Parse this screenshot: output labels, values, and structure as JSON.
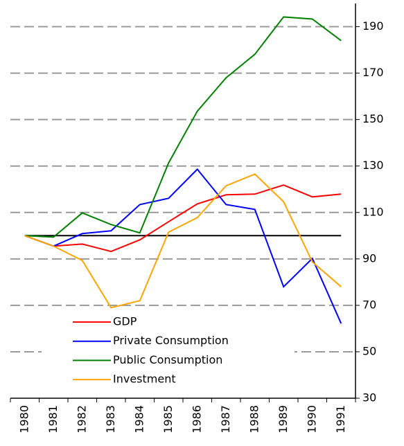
{
  "chart_data": {
    "type": "line",
    "categories": [
      "1980",
      "1981",
      "1982",
      "1983",
      "1984",
      "1985",
      "1986",
      "1987",
      "1988",
      "1989",
      "1990",
      "1991"
    ],
    "series": [
      {
        "name": "GDP",
        "color": "#ff0000",
        "values": [
          100,
          95.5,
          96.4,
          93.2,
          98.2,
          106,
          113.7,
          117.6,
          117.9,
          121.8,
          116.7,
          117.9
        ]
      },
      {
        "name": "Private Consumption",
        "color": "#0000ff",
        "values": [
          100,
          95.5,
          100.9,
          102.1,
          113.4,
          116.1,
          128.6,
          113.4,
          111.3,
          78,
          90.2,
          62.2
        ]
      },
      {
        "name": "Public Consumption",
        "color": "#008000",
        "values": [
          100,
          99.4,
          109.8,
          104.8,
          101.2,
          131.3,
          153.6,
          168,
          178.1,
          194.2,
          193.3,
          184
        ]
      },
      {
        "name": "Investment",
        "color": "#ffa500",
        "values": [
          100,
          95.5,
          89.3,
          69,
          72,
          101.5,
          107.8,
          121.5,
          126.5,
          114.6,
          88.7,
          78
        ]
      }
    ],
    "ylim": [
      30,
      200
    ],
    "yticks": [
      30,
      50,
      70,
      90,
      110,
      130,
      150,
      170,
      190
    ],
    "grid": true,
    "reference_line": 100,
    "legend": "lower-left"
  }
}
